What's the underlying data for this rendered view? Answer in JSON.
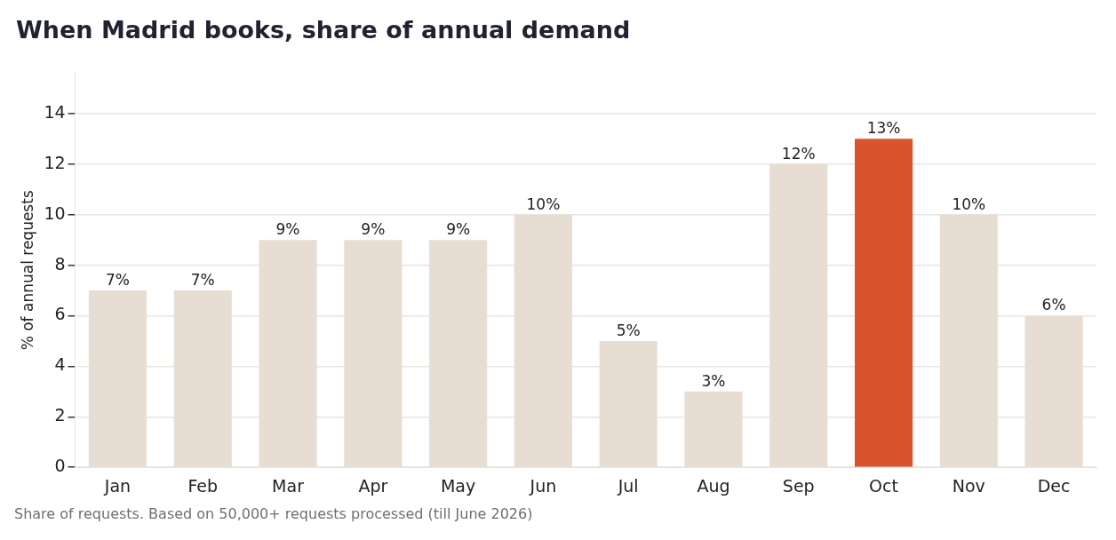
{
  "chart_data": {
    "type": "bar",
    "title": "When Madrid books, share of annual demand",
    "ylabel": "% of annual requests",
    "categories": [
      "Jan",
      "Feb",
      "Mar",
      "Apr",
      "May",
      "Jun",
      "Jul",
      "Aug",
      "Sep",
      "Oct",
      "Nov",
      "Dec"
    ],
    "values": [
      7,
      7,
      9,
      9,
      9,
      10,
      5,
      3,
      12,
      13,
      10,
      6
    ],
    "colors": [
      "#e8ddd3",
      "#e8ddd3",
      "#e8ddd3",
      "#e8ddd3",
      "#e8ddd3",
      "#e8ddd3",
      "#e8ddd3",
      "#e8ddd3",
      "#e8ddd3",
      "#d9532c",
      "#e8ddd3",
      "#e8ddd3"
    ],
    "value_labels": [
      "7%",
      "7%",
      "9%",
      "9%",
      "9%",
      "10%",
      "5%",
      "3%",
      "12%",
      "13%",
      "10%",
      "6%"
    ],
    "ylim": [
      0,
      15.6
    ],
    "yticks": [
      0,
      2,
      4,
      6,
      8,
      10,
      12,
      14
    ],
    "grid": "y",
    "legend": false,
    "annotations": [
      "Share of requests. Based on 50,000+ requests processed (till June 2026)"
    ]
  }
}
